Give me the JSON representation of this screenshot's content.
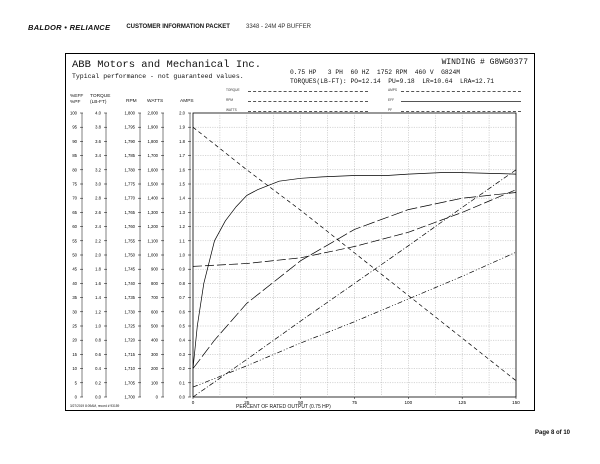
{
  "header": {
    "brand": "BALDOR • RELIANCE",
    "packet": "CUSTOMER INFORMATION PACKET",
    "model": "3348 - 24M 4P BUFFER"
  },
  "sheet": {
    "company": "ABB Motors and Mechanical Inc.",
    "disclaimer": "Typical performance - not guaranteed values.",
    "winding": "WINDING # G8WG0377",
    "rating_line1": "0.75 HP   3 PH  60 HZ  1752 RPM  460 V  G824M",
    "rating_line2": "TORQUES(LB-FT): PO=12.14  PU=9.18  LR=10.64  LRA=12.71"
  },
  "legend": {
    "left": [
      "TORQUE",
      "RPM",
      "WATTS"
    ],
    "right": [
      "AMPS",
      "EFF",
      "PF"
    ]
  },
  "axis_headers": {
    "col1": "%EFF\n%PF",
    "col2": "TORQUE\n(LB-FT)",
    "col3": "RPM",
    "col4": "WATTS",
    "col5": "AMPS"
  },
  "footer_note": "3/27/2019 8:09AM, record # 93159",
  "page_label": "Page 8 of 10",
  "chart_data": {
    "type": "line",
    "xlabel": "PERCENT OF RATED OUTPUT (0.75 HP)",
    "x_ticks": [
      "0",
      "25",
      "50",
      "75",
      "100",
      "125",
      "150"
    ],
    "xlim": [
      0,
      150
    ],
    "grid": true,
    "left_axes": {
      "eff_pf": [
        "100",
        "95",
        "90",
        "85",
        "80",
        "75",
        "70",
        "65",
        "60",
        "55",
        "50",
        "45",
        "40",
        "35",
        "30",
        "25",
        "20",
        "15",
        "10",
        "5",
        "0"
      ],
      "torque": [
        "4.0",
        "3.8",
        "3.6",
        "3.4",
        "3.2",
        "3.0",
        "2.8",
        "2.6",
        "2.4",
        "2.2",
        "2.0",
        "1.8",
        "1.6",
        "1.4",
        "1.2",
        "1.0",
        "0.8",
        "0.6",
        "0.4",
        "0.2",
        "0.0"
      ],
      "rpm": [
        "1,800",
        "1,795",
        "1,790",
        "1,785",
        "1,780",
        "1,775",
        "1,770",
        "1,765",
        "1,760",
        "1,755",
        "1,750",
        "1,745",
        "1,740",
        "1,735",
        "1,730",
        "1,725",
        "1,720",
        "1,715",
        "1,710",
        "1,705",
        "1,700"
      ],
      "watts": [
        "2,000",
        "1,900",
        "1,800",
        "1,700",
        "1,600",
        "1,500",
        "1,400",
        "1,300",
        "1,200",
        "1,100",
        "1,000",
        "900",
        "800",
        "700",
        "600",
        "500",
        "400",
        "300",
        "200",
        "100",
        "0"
      ],
      "amps": [
        "2.0",
        "1.9",
        "1.8",
        "1.7",
        "1.6",
        "1.5",
        "1.4",
        "1.3",
        "1.2",
        "1.1",
        "1.0",
        "0.9",
        "0.8",
        "0.7",
        "0.6",
        "0.5",
        "0.4",
        "0.3",
        "0.2",
        "0.1",
        "0.0"
      ]
    },
    "series": [
      {
        "style": "solid",
        "axis": "eff_pf",
        "x": [
          0,
          2,
          5,
          10,
          15,
          20,
          25,
          30,
          40,
          50,
          60,
          75,
          90,
          100,
          115,
          125,
          150
        ],
        "y": [
          10,
          25,
          40,
          55,
          62,
          67,
          71,
          73,
          76,
          77,
          77.5,
          78,
          78,
          78.5,
          79,
          79,
          78.5
        ]
      },
      {
        "style": "long-dash",
        "axis": "eff_pf",
        "x": [
          0,
          25,
          50,
          75,
          100,
          125,
          150
        ],
        "y": [
          46,
          47,
          49,
          53,
          58,
          65,
          73
        ]
      },
      {
        "style": "dash",
        "axis": "torque",
        "x": [
          0,
          25,
          50,
          75,
          100,
          125,
          150
        ],
        "y": [
          3.8,
          3.2,
          2.63,
          2.03,
          1.43,
          0.83,
          0.23
        ]
      },
      {
        "style": "dash-dot",
        "axis": "torque",
        "x": [
          0,
          25,
          50,
          75,
          100,
          125,
          150
        ],
        "y": [
          0,
          0.53,
          1.07,
          1.6,
          2.13,
          2.67,
          3.2
        ]
      },
      {
        "style": "dash-dot-dot",
        "axis": "amps",
        "x": [
          0,
          25,
          50,
          75,
          100,
          125,
          150
        ],
        "y": [
          0.07,
          0.22,
          0.38,
          0.53,
          0.69,
          0.85,
          1.02
        ]
      },
      {
        "style": "dash-long",
        "axis": "eff_pf",
        "x": [
          0,
          10,
          25,
          50,
          75,
          100,
          125,
          150
        ],
        "y": [
          10,
          20,
          33,
          48,
          59,
          66,
          70,
          72
        ]
      }
    ]
  }
}
